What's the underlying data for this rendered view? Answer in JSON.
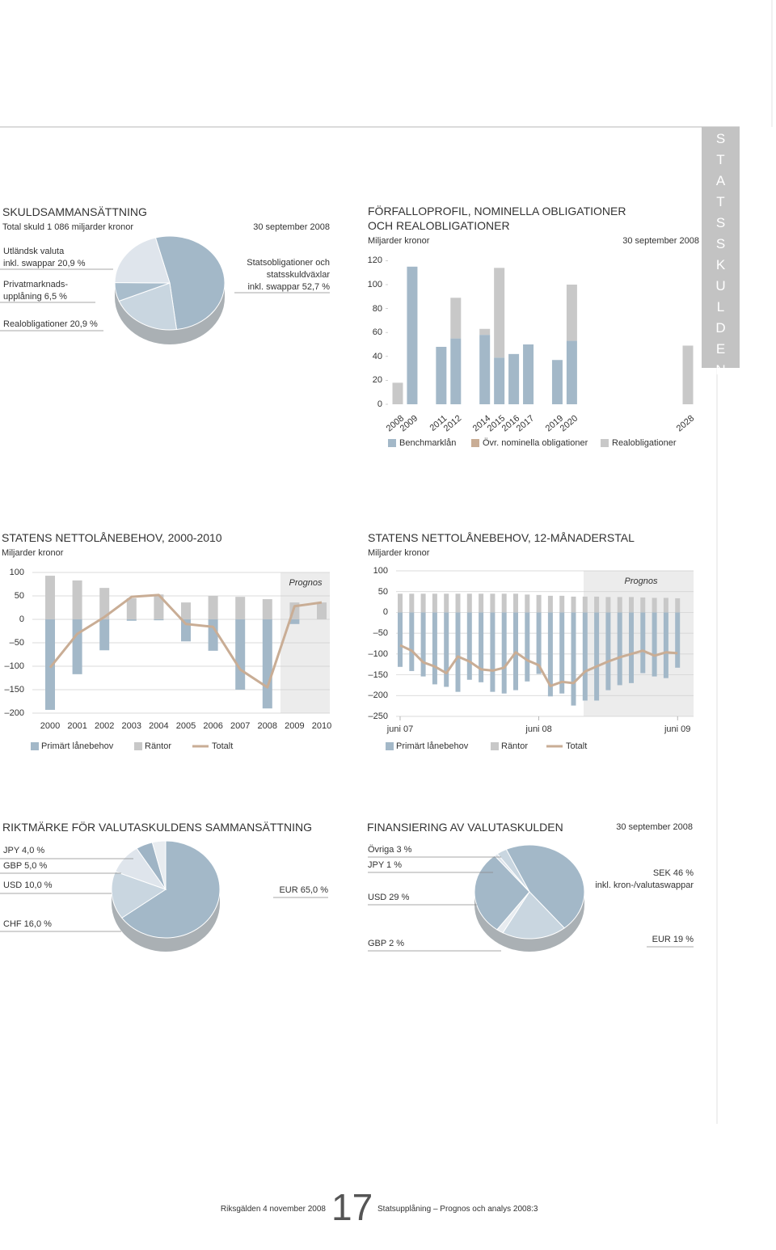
{
  "sidebar": "STATSSKULDEN",
  "footer": {
    "left": "Riksgälden 4 november 2008",
    "page": "17",
    "right": "Statsupplåning – Prognos och analys 2008:3"
  },
  "chart_data": [
    {
      "type": "pie",
      "title": "SKULDSAMMANSÄTTNING",
      "subtitle": "Total skuld 1 086 miljarder kronor",
      "date": "30 september 2008",
      "categories": [
        "Statsobligationer och\nstatsskuldväxlar\ninkl. swappar",
        "Realobligationer",
        "Privatmarknads-\nupplåning",
        "Utländsk valuta\ninkl. swappar"
      ],
      "values": [
        52.7,
        20.9,
        6.5,
        20.9
      ],
      "value_labels": [
        "52,7 %",
        "20,9 %",
        "6,5 %",
        "20,9 %"
      ],
      "colors": [
        "#a3b8c8",
        "#c9d6e0",
        "#a9bdcc",
        "#dfe5ec"
      ]
    },
    {
      "type": "bar",
      "stacked": true,
      "title": "FÖRFALLOPROFIL, NOMINELLA OBLIGATIONER\nOCH REALOBLIGATIONER",
      "ylabel": "Miljarder kronor",
      "date": "30 september 2008",
      "categories": [
        "2008",
        "2009",
        null,
        "2011",
        "2012",
        null,
        "2014",
        "2015",
        "2016",
        "2017",
        null,
        "2019",
        "2020",
        null,
        null,
        null,
        null,
        null,
        null,
        null,
        "2028"
      ],
      "series": [
        {
          "name": "Benchmarklån",
          "color": "#a3b8c8",
          "values": [
            null,
            115,
            null,
            48,
            55,
            null,
            58,
            39,
            42,
            50,
            null,
            37,
            53,
            null,
            null,
            null,
            null,
            null,
            null,
            null,
            null
          ]
        },
        {
          "name": "Övr. nominella obligationer",
          "color": "#c9ad95",
          "values": [
            null,
            null,
            null,
            null,
            null,
            null,
            null,
            null,
            null,
            null,
            null,
            null,
            null,
            null,
            null,
            null,
            null,
            null,
            null,
            null,
            null
          ]
        },
        {
          "name": "Realobligationer",
          "color": "#c8c8c8",
          "values": [
            18,
            null,
            null,
            null,
            34,
            null,
            5,
            75,
            null,
            null,
            null,
            null,
            47,
            null,
            null,
            null,
            null,
            null,
            null,
            null,
            49
          ]
        }
      ],
      "ylim": [
        0,
        125
      ],
      "yticks": [
        0,
        20,
        40,
        60,
        80,
        100,
        120
      ]
    },
    {
      "type": "bar",
      "title": "STATENS NETTOLÅNEBEHOV, 2000-2010",
      "ylabel": "Miljarder kronor",
      "forecast_label": "Prognos",
      "categories": [
        "2000",
        "2001",
        "2002",
        "2003",
        "2004",
        "2005",
        "2006",
        "2007",
        "2008",
        "2009",
        "2010"
      ],
      "series": [
        {
          "name": "Primärt lånebehov",
          "type": "bar",
          "color": "#a3b8c8",
          "values": [
            -193,
            -117,
            -66,
            -3,
            -2,
            -47,
            -67,
            -150,
            -190,
            -10,
            null
          ]
        },
        {
          "name": "Räntor",
          "type": "bar",
          "color": "#c8c8c8",
          "values": [
            93,
            83,
            67,
            45,
            53,
            36,
            50,
            48,
            43,
            36,
            36
          ]
        },
        {
          "name": "Totalt",
          "type": "line",
          "color": "#c9ad95",
          "values": [
            -103,
            -31,
            5,
            48,
            52,
            -10,
            -16,
            -107,
            -145,
            28,
            36
          ]
        }
      ],
      "ylim": [
        -200,
        100
      ],
      "yticks": [
        100,
        50,
        0,
        {
          "value": -50,
          "label": "–50"
        },
        {
          "value": -100,
          "label": "–100"
        },
        {
          "value": -150,
          "label": "–150"
        },
        {
          "value": -200,
          "label": "–200"
        }
      ],
      "grid": true
    },
    {
      "type": "bar",
      "title": "STATENS NETTOLÅNEBEHOV, 12-MÅNADERSTAL",
      "ylabel": "Miljarder kronor",
      "forecast_label": "Prognos",
      "categories": [
        "juni 07",
        null,
        null,
        null,
        null,
        null,
        null,
        null,
        null,
        null,
        null,
        null,
        "juni 08",
        null,
        null,
        null,
        null,
        null,
        null,
        null,
        null,
        null,
        null,
        null,
        "juni 09"
      ],
      "series": [
        {
          "name": "Primärt lånebehov",
          "type": "bar",
          "color": "#a3b8c8",
          "values": [
            -131,
            -141,
            -154,
            -173,
            -179,
            -191,
            -162,
            -168,
            -191,
            -195,
            -187,
            -166,
            -148,
            -202,
            -195,
            -224,
            -212,
            -212,
            -187,
            -175,
            -170,
            -146,
            -154,
            -158,
            -133
          ]
        },
        {
          "name": "Räntor",
          "type": "bar",
          "color": "#c8c8c8",
          "values": [
            45,
            45,
            45,
            45,
            45,
            45,
            45,
            45,
            45,
            45,
            45,
            43,
            42,
            40,
            40,
            38,
            38,
            38,
            37,
            37,
            37,
            36,
            35,
            35,
            34
          ]
        },
        {
          "name": "Totalt",
          "type": "line",
          "color": "#c9ad95",
          "values": [
            -79,
            -92,
            -120,
            -130,
            -146,
            -106,
            -118,
            -137,
            -140,
            -133,
            -96,
            -115,
            -127,
            -177,
            -167,
            -170,
            -142,
            -130,
            -118,
            -108,
            -100,
            -92,
            -104,
            -96,
            -98
          ]
        }
      ],
      "ylim": [
        -250,
        100
      ],
      "yticks": [
        100,
        50,
        0,
        {
          "value": -50,
          "label": "–50"
        },
        {
          "value": -100,
          "label": "–100"
        },
        {
          "value": -150,
          "label": "–150"
        },
        {
          "value": -200,
          "label": "–200"
        },
        {
          "value": -250,
          "label": "–250"
        }
      ],
      "grid": true
    },
    {
      "type": "pie",
      "title": "RIKTMÄRKE FÖR VALUTASKULDENS SAMMANSÄTTNING",
      "categories": [
        "EUR",
        "CHF",
        "USD",
        "GBP",
        "JPY"
      ],
      "values": [
        65,
        16,
        10,
        5,
        4
      ],
      "value_labels": [
        "65,0 %",
        "16,0 %",
        "10,0 %",
        "5,0 %",
        "4,0 %"
      ],
      "colors": [
        "#a3b8c8",
        "#c9d6e0",
        "#dfe5ec",
        "#9fb4c5",
        "#e8ecf0"
      ]
    },
    {
      "type": "pie",
      "title": "FINANSIERING AV VALUTASKULDEN",
      "date": "30 september 2008",
      "categories": [
        "SEK",
        "EUR",
        "GBP",
        "USD",
        "JPY",
        "Övriga"
      ],
      "values": [
        46,
        19,
        2,
        29,
        1,
        3
      ],
      "value_labels": [
        "46 %",
        "19 %",
        "2 %",
        "29 %",
        "1 %",
        "3 %"
      ],
      "label_notes": [
        "inkl. kron-/valutaswappar",
        null,
        null,
        null,
        null,
        null
      ],
      "colors": [
        "#a3b8c8",
        "#c9d6e0",
        "#e8ecf0",
        "#a3b8c8",
        "#dfe5ec",
        "#c9d6e0"
      ]
    }
  ]
}
